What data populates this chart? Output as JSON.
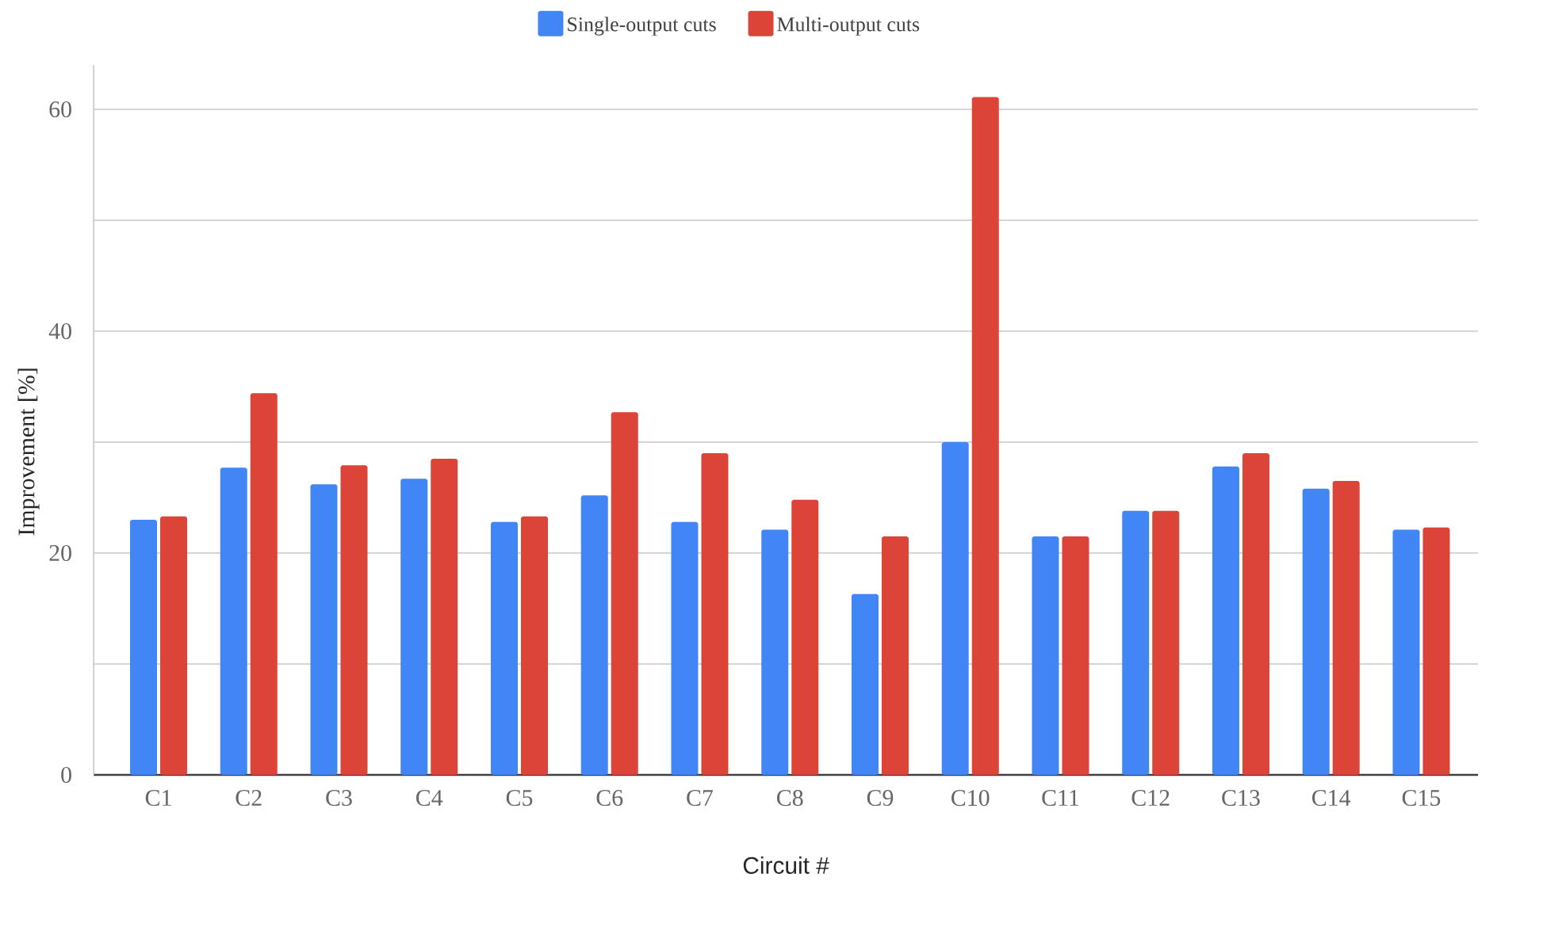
{
  "chart_data": {
    "type": "bar",
    "xlabel": "Circuit #",
    "ylabel": "Improvement [%]",
    "categories": [
      "C1",
      "C2",
      "C3",
      "C4",
      "C5",
      "C6",
      "C7",
      "C8",
      "C9",
      "C10",
      "C11",
      "C12",
      "C13",
      "C14",
      "C15"
    ],
    "series": [
      {
        "name": "Single-output cuts",
        "color": "#4285f4",
        "values": [
          23.0,
          27.7,
          26.2,
          26.7,
          22.8,
          25.2,
          22.8,
          22.1,
          16.3,
          30.0,
          21.5,
          23.8,
          27.8,
          25.8,
          22.1
        ]
      },
      {
        "name": "Multi-output cuts",
        "color": "#db4437",
        "values": [
          23.3,
          34.4,
          27.9,
          28.5,
          23.3,
          32.7,
          29.0,
          24.8,
          21.5,
          61.1,
          21.5,
          23.8,
          29.0,
          26.5,
          22.3
        ]
      }
    ],
    "ylim": [
      0,
      64
    ],
    "yticks": [
      0,
      {
        "value": 10,
        "label": null
      },
      20,
      {
        "value": 30,
        "label": null
      },
      40,
      {
        "value": 50,
        "label": null
      },
      60
    ],
    "grid": "y",
    "legend": "top"
  }
}
